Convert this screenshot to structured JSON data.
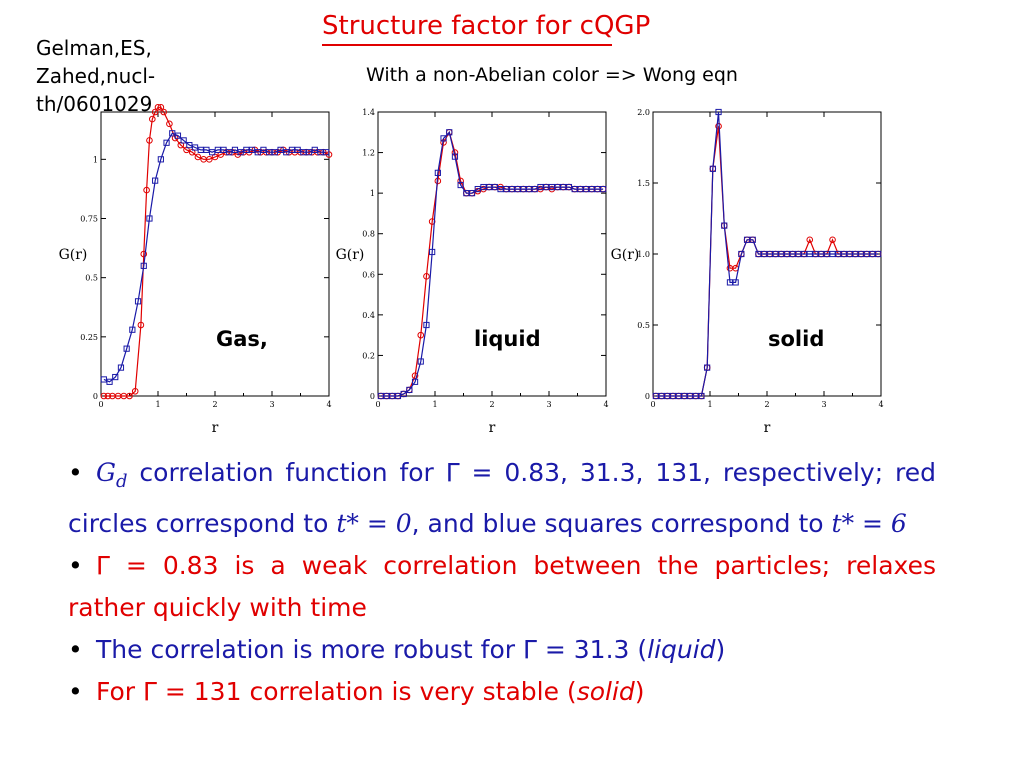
{
  "slide": {
    "title": "Structure factor for cQGP",
    "reference": "Gelman,ES, Zahed,nucl-th/0601029",
    "subtitle": "With a non-Abelian color => Wong eqn",
    "phase_labels": [
      "Gas,",
      "liquid",
      "solid"
    ]
  },
  "notes": [
    {
      "color": "#1a1aa8",
      "bullet": "•",
      "sym": "G",
      "sub": "d",
      "text1": " correlation function for ",
      "gamma": "Γ = 0.83, 31.3, 131,",
      "text2": " respectively; red circles correspond to ",
      "t1": "t* = 0",
      "text3": ", and blue squares correspond to ",
      "t2": "t* = 6"
    },
    {
      "color": "#e00000",
      "bullet": "•",
      "text": "Γ = 0.83 is a weak correlation between the particles; relaxes rather quickly with time"
    },
    {
      "color": "#1a1aa8",
      "bullet": "•",
      "text": "The correlation is more robust for Γ = 31.3 (",
      "ital": "liquid",
      "end": ")"
    },
    {
      "color": "#e00000",
      "bullet": "•",
      "text": "For Γ = 131 correlation is very stable (",
      "ital": "solid",
      "end": ")"
    }
  ],
  "chart_data": [
    {
      "type": "line",
      "xlabel": "r",
      "ylabel": "G(r)",
      "xlim": [
        0,
        4
      ],
      "ylim": [
        0,
        1.2
      ],
      "xticks": [
        0,
        1,
        2,
        3,
        4
      ],
      "yticks": [
        0,
        0.25,
        0.5,
        0.75,
        1
      ],
      "ytick_labels": [
        "0",
        "0.25",
        "0.5",
        "0.75",
        "1"
      ],
      "series": [
        {
          "marker": "circle",
          "color": "#e00000",
          "x": [
            0.05,
            0.12,
            0.2,
            0.3,
            0.4,
            0.5,
            0.6,
            0.7,
            0.75,
            0.8,
            0.85,
            0.9,
            0.95,
            1.0,
            1.05,
            1.1,
            1.2,
            1.3,
            1.4,
            1.5,
            1.6,
            1.7,
            1.8,
            1.9,
            2.0,
            2.1,
            2.2,
            2.3,
            2.4,
            2.5,
            2.6,
            2.7,
            2.8,
            2.9,
            3.0,
            3.1,
            3.2,
            3.3,
            3.4,
            3.5,
            3.6,
            3.7,
            3.8,
            3.9,
            4.0
          ],
          "y": [
            0,
            0,
            0,
            0,
            0,
            0,
            0.02,
            0.3,
            0.6,
            0.87,
            1.08,
            1.17,
            1.2,
            1.22,
            1.22,
            1.2,
            1.15,
            1.09,
            1.06,
            1.04,
            1.03,
            1.01,
            1.0,
            1.0,
            1.01,
            1.02,
            1.03,
            1.03,
            1.02,
            1.03,
            1.03,
            1.04,
            1.03,
            1.03,
            1.03,
            1.03,
            1.04,
            1.03,
            1.03,
            1.03,
            1.03,
            1.03,
            1.03,
            1.03,
            1.02
          ]
        },
        {
          "marker": "square",
          "color": "#1a1aa8",
          "x": [
            0.05,
            0.15,
            0.25,
            0.35,
            0.45,
            0.55,
            0.65,
            0.75,
            0.85,
            0.95,
            1.05,
            1.15,
            1.25,
            1.35,
            1.45,
            1.55,
            1.65,
            1.75,
            1.85,
            1.95,
            2.05,
            2.15,
            2.25,
            2.35,
            2.45,
            2.55,
            2.65,
            2.75,
            2.85,
            2.95,
            3.05,
            3.15,
            3.25,
            3.35,
            3.45,
            3.55,
            3.65,
            3.75,
            3.85,
            3.95
          ],
          "y": [
            0.07,
            0.06,
            0.08,
            0.12,
            0.2,
            0.28,
            0.4,
            0.55,
            0.75,
            0.91,
            1.0,
            1.07,
            1.11,
            1.1,
            1.08,
            1.06,
            1.05,
            1.04,
            1.04,
            1.03,
            1.04,
            1.04,
            1.03,
            1.04,
            1.03,
            1.04,
            1.04,
            1.03,
            1.04,
            1.03,
            1.03,
            1.04,
            1.03,
            1.04,
            1.04,
            1.03,
            1.03,
            1.04,
            1.03,
            1.03
          ]
        }
      ]
    },
    {
      "type": "line",
      "xlabel": "r",
      "ylabel": "G(r)",
      "xlim": [
        0,
        4
      ],
      "ylim": [
        0,
        1.4
      ],
      "xticks": [
        0,
        1,
        2,
        3,
        4
      ],
      "yticks": [
        0,
        0.2,
        0.4,
        0.6,
        0.8,
        1,
        1.2,
        1.4
      ],
      "ytick_labels": [
        "0",
        "0.2",
        "0.4",
        "0.6",
        "0.8",
        "1",
        "1.2",
        "1.4"
      ],
      "series": [
        {
          "marker": "circle",
          "color": "#e00000",
          "x": [
            0.05,
            0.15,
            0.25,
            0.35,
            0.45,
            0.55,
            0.65,
            0.75,
            0.85,
            0.95,
            1.05,
            1.15,
            1.25,
            1.35,
            1.45,
            1.55,
            1.65,
            1.75,
            1.85,
            1.95,
            2.05,
            2.15,
            2.25,
            2.35,
            2.45,
            2.55,
            2.65,
            2.75,
            2.85,
            2.95,
            3.05,
            3.15,
            3.25,
            3.35,
            3.45,
            3.55,
            3.65,
            3.75,
            3.85,
            3.95
          ],
          "y": [
            0,
            0,
            0,
            0,
            0.01,
            0.03,
            0.1,
            0.3,
            0.59,
            0.86,
            1.06,
            1.25,
            1.3,
            1.2,
            1.06,
            1.0,
            1.0,
            1.01,
            1.02,
            1.03,
            1.03,
            1.03,
            1.02,
            1.02,
            1.02,
            1.02,
            1.02,
            1.02,
            1.02,
            1.03,
            1.02,
            1.03,
            1.03,
            1.03,
            1.02,
            1.02,
            1.02,
            1.02,
            1.02,
            1.02
          ]
        },
        {
          "marker": "square",
          "color": "#1a1aa8",
          "x": [
            0.05,
            0.15,
            0.25,
            0.35,
            0.45,
            0.55,
            0.65,
            0.75,
            0.85,
            0.95,
            1.05,
            1.15,
            1.25,
            1.35,
            1.45,
            1.55,
            1.65,
            1.75,
            1.85,
            1.95,
            2.05,
            2.15,
            2.25,
            2.35,
            2.45,
            2.55,
            2.65,
            2.75,
            2.85,
            2.95,
            3.05,
            3.15,
            3.25,
            3.35,
            3.45,
            3.55,
            3.65,
            3.75,
            3.85,
            3.95
          ],
          "y": [
            0,
            0,
            0,
            0,
            0.01,
            0.03,
            0.07,
            0.17,
            0.35,
            0.71,
            1.1,
            1.27,
            1.3,
            1.18,
            1.04,
            1.0,
            1.0,
            1.02,
            1.03,
            1.03,
            1.03,
            1.02,
            1.02,
            1.02,
            1.02,
            1.02,
            1.02,
            1.02,
            1.03,
            1.03,
            1.03,
            1.03,
            1.03,
            1.03,
            1.02,
            1.02,
            1.02,
            1.02,
            1.02,
            1.02
          ]
        }
      ]
    },
    {
      "type": "line",
      "xlabel": "r",
      "ylabel": "G(r)",
      "xlim": [
        0,
        4
      ],
      "ylim": [
        0,
        2.0
      ],
      "xticks": [
        0,
        1,
        2,
        3,
        4
      ],
      "yticks": [
        0,
        0.5,
        1,
        1.5,
        2
      ],
      "ytick_labels": [
        "0",
        "0.5",
        "1.0",
        "1.5",
        "2.0"
      ],
      "series": [
        {
          "marker": "circle",
          "color": "#e00000",
          "x": [
            0.05,
            0.15,
            0.25,
            0.35,
            0.45,
            0.55,
            0.65,
            0.75,
            0.85,
            0.95,
            1.05,
            1.15,
            1.25,
            1.35,
            1.45,
            1.55,
            1.65,
            1.75,
            1.85,
            1.95,
            2.05,
            2.15,
            2.25,
            2.35,
            2.45,
            2.55,
            2.65,
            2.75,
            2.85,
            2.95,
            3.05,
            3.15,
            3.25,
            3.35,
            3.45,
            3.55,
            3.65,
            3.75,
            3.85,
            3.95
          ],
          "y": [
            0,
            0,
            0,
            0,
            0,
            0,
            0,
            0,
            0,
            0.2,
            1.6,
            1.9,
            1.2,
            0.9,
            0.9,
            1.0,
            1.1,
            1.1,
            1.0,
            1.0,
            1.0,
            1.0,
            1.0,
            1.0,
            1.0,
            1.0,
            1.0,
            1.1,
            1.0,
            1.0,
            1.0,
            1.1,
            1.0,
            1.0,
            1.0,
            1.0,
            1.0,
            1.0,
            1.0,
            1.0
          ]
        },
        {
          "marker": "square",
          "color": "#1a1aa8",
          "x": [
            0.05,
            0.15,
            0.25,
            0.35,
            0.45,
            0.55,
            0.65,
            0.75,
            0.85,
            0.95,
            1.05,
            1.15,
            1.25,
            1.35,
            1.45,
            1.55,
            1.65,
            1.75,
            1.85,
            1.95,
            2.05,
            2.15,
            2.25,
            2.35,
            2.45,
            2.55,
            2.65,
            2.75,
            2.85,
            2.95,
            3.05,
            3.15,
            3.25,
            3.35,
            3.45,
            3.55,
            3.65,
            3.75,
            3.85,
            3.95
          ],
          "y": [
            0,
            0,
            0,
            0,
            0,
            0,
            0,
            0,
            0,
            0.2,
            1.6,
            2.0,
            1.2,
            0.8,
            0.8,
            1.0,
            1.1,
            1.1,
            1.0,
            1.0,
            1.0,
            1.0,
            1.0,
            1.0,
            1.0,
            1.0,
            1.0,
            1.0,
            1.0,
            1.0,
            1.0,
            1.0,
            1.0,
            1.0,
            1.0,
            1.0,
            1.0,
            1.0,
            1.0,
            1.0
          ]
        }
      ]
    }
  ]
}
